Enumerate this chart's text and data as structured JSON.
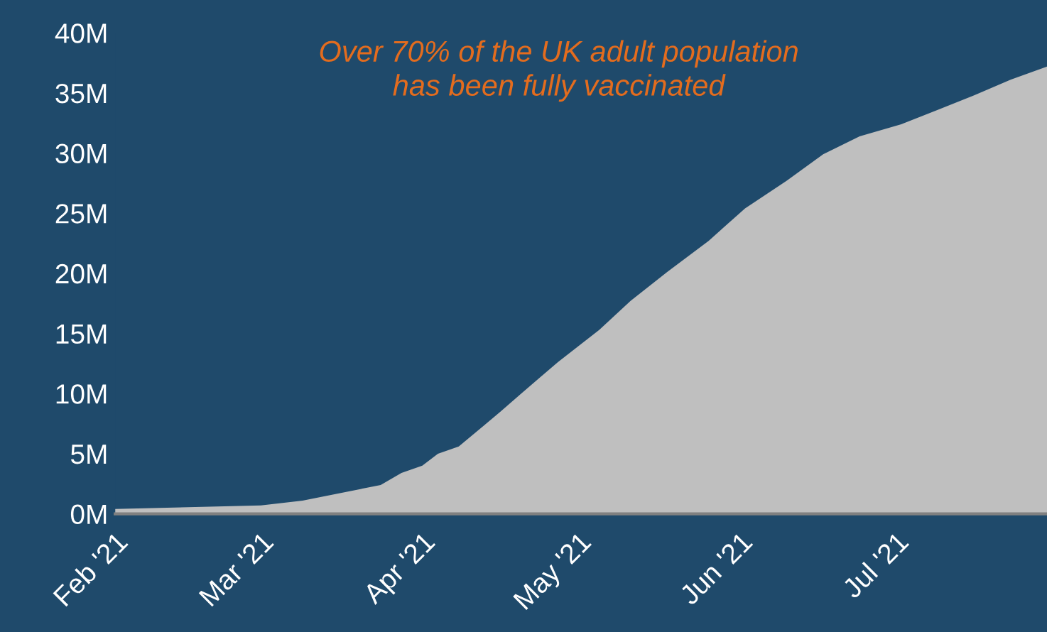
{
  "chart_data": {
    "type": "area",
    "annotations": [
      "Over 70% of the UK adult population\nhas been fully vaccinated"
    ],
    "x": [
      "2021-02-01",
      "2021-03-01",
      "2021-03-09",
      "2021-03-16",
      "2021-03-24",
      "2021-03-28",
      "2021-04-01",
      "2021-04-04",
      "2021-04-08",
      "2021-04-13",
      "2021-04-16",
      "2021-04-20",
      "2021-04-27",
      "2021-05-05",
      "2021-05-11",
      "2021-05-18",
      "2021-05-26",
      "2021-06-02",
      "2021-06-10",
      "2021-06-17",
      "2021-06-24",
      "2021-07-02",
      "2021-07-09",
      "2021-07-16",
      "2021-07-23",
      "2021-07-30"
    ],
    "series": [
      {
        "color": "#bfbfbf",
        "values": [
          0.4,
          0.7,
          1.1,
          1.7,
          2.4,
          3.4,
          4.0,
          5.0,
          5.6,
          7.4,
          8.5,
          10.0,
          12.6,
          15.3,
          17.7,
          20.1,
          22.7,
          25.4,
          27.7,
          29.9,
          31.4,
          32.4,
          33.6,
          34.8,
          36.1,
          37.2
        ]
      }
    ],
    "xlim": [
      "2021-02-01",
      "2021-07-30"
    ],
    "xticks": [
      {
        "value": "2021-02-01",
        "label": "Feb '21"
      },
      {
        "value": "2021-03-01",
        "label": "Mar '21"
      },
      {
        "value": "2021-04-01",
        "label": "Apr '21"
      },
      {
        "value": "2021-05-01",
        "label": "May '21"
      },
      {
        "value": "2021-06-01",
        "label": "Jun '21"
      },
      {
        "value": "2021-07-01",
        "label": "Jul '21"
      }
    ],
    "ylim": [
      0,
      40
    ],
    "yticks": [
      {
        "value": 0,
        "label": "0M"
      },
      {
        "value": 5,
        "label": "5M"
      },
      {
        "value": 10,
        "label": "10M"
      },
      {
        "value": 15,
        "label": "15M"
      },
      {
        "value": 20,
        "label": "20M"
      },
      {
        "value": 25,
        "label": "25M"
      },
      {
        "value": 30,
        "label": "30M"
      },
      {
        "value": 35,
        "label": "35M"
      },
      {
        "value": 40,
        "label": "40M"
      }
    ]
  }
}
